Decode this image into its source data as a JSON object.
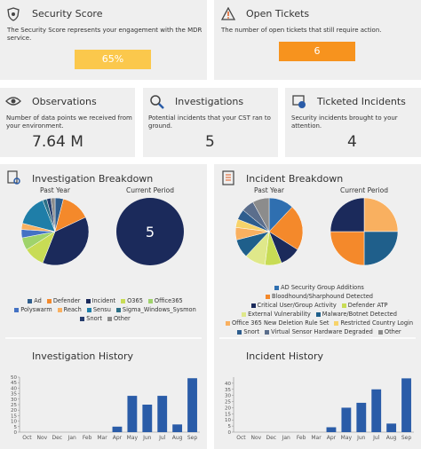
{
  "score_cards": [
    {
      "title": "Security Score",
      "description": "The Security Score represents your engagement with the MDR service.",
      "value": "65%"
    },
    {
      "title": "Open Tickets",
      "description": "The number of open tickets that still require action.",
      "value": 6
    }
  ],
  "stat_cards": [
    {
      "title": "Observations",
      "description": "Number of data points we received from your environment.",
      "value": "7.64 M"
    },
    {
      "title": "Investigations",
      "description": "Potential incidents that your CST ran to ground.",
      "value": 5
    },
    {
      "title": "Ticketed Incidents",
      "description": "Security incidents brought to your attention.",
      "value": 4
    }
  ],
  "panels": [
    {
      "title": "Investigation Breakdown"
    },
    {
      "title": "Incident Breakdown"
    }
  ],
  "chart_data": [
    {
      "type": "pie",
      "title": "Past Year",
      "categories": [
        "Ad",
        "Defender",
        "Incident",
        "O365",
        "Office365",
        "Polyswarm",
        "Reach",
        "Sensu",
        "Sigma_Windows_Sysmon",
        "Snort",
        "Other"
      ],
      "colors": [
        "#2f5e8e",
        "#f4892b",
        "#1b2a5b",
        "#c8dc55",
        "#9fd36b",
        "#4472c4",
        "#f9b060",
        "#1f7ea8",
        "#2b6f86",
        "#263d6e",
        "#8c8c8c"
      ],
      "values": [
        4,
        14,
        38,
        10,
        6,
        4,
        3,
        15,
        2,
        2,
        2
      ]
    },
    {
      "type": "pie",
      "title": "Current Period",
      "categories": [
        "Incident"
      ],
      "colors": [
        "#1b2a5b"
      ],
      "values": [
        5
      ]
    },
    {
      "type": "pie",
      "title": "Past Year",
      "categories": [
        "AD Security Group Additions",
        "Bloodhound/Sharphound Detected",
        "Critical User/Group Activity",
        "Defender ATP",
        "External Vulnerability",
        "Malware/Botnet Detected",
        "Office 365 New Deletion Rule Set",
        "Restricted Country Login",
        "Snort",
        "Virtual Sensor Hardware Degraded",
        "Other"
      ],
      "colors": [
        "#2f6fb0",
        "#f4892b",
        "#1b2a5b",
        "#c8dc55",
        "#dfe88a",
        "#1f5f8b",
        "#f9b060",
        "#f7d36a",
        "#2e5d8e",
        "#5b6e8c",
        "#8c8c8c"
      ],
      "values": [
        12,
        22,
        10,
        8,
        10,
        9,
        6,
        4,
        5,
        6,
        8
      ]
    },
    {
      "type": "pie",
      "title": "Current Period",
      "categories": [
        "Office 365 New Deletion Rule Set",
        "Malware/Botnet Detected",
        "Bloodhound/Sharphound Detected",
        "Critical User/Group Activity"
      ],
      "colors": [
        "#f9b060",
        "#1f5f8b",
        "#f4892b",
        "#1b2a5b"
      ],
      "values": [
        1,
        1,
        1,
        1
      ]
    },
    {
      "type": "bar",
      "title": "Investigation History",
      "categories": [
        "Oct",
        "Nov",
        "Dec",
        "Jan",
        "Feb",
        "Mar",
        "Apr",
        "May",
        "Jun",
        "Jul",
        "Aug",
        "Sep"
      ],
      "values": [
        0,
        0,
        0,
        0,
        0,
        0,
        5,
        33,
        25,
        33,
        7,
        49
      ],
      "color": "#2a5ca8",
      "ylim": [
        0,
        50
      ],
      "yticks": [
        0,
        5,
        10,
        15,
        20,
        25,
        30,
        35,
        40,
        45,
        50
      ]
    },
    {
      "type": "bar",
      "title": "Incident History",
      "categories": [
        "Oct",
        "Nov",
        "Dec",
        "Jan",
        "Feb",
        "Mar",
        "Apr",
        "May",
        "Jun",
        "Jul",
        "Aug",
        "Sep"
      ],
      "values": [
        0,
        0,
        0,
        0,
        0,
        0,
        4,
        20,
        24,
        35,
        7,
        44
      ],
      "color": "#2a5ca8",
      "ylim": [
        0,
        45
      ],
      "yticks": [
        0,
        5,
        10,
        15,
        20,
        25,
        30,
        35,
        40
      ]
    }
  ]
}
